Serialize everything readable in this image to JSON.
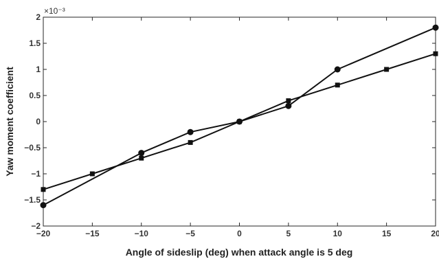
{
  "chart_data": {
    "type": "line",
    "title": "",
    "xlabel": "Angle of sideslip (deg) when attack angle is 5 deg",
    "ylabel": "Yaw moment coefficient",
    "y_scale_label": "×10⁻³",
    "xlim": [
      -20,
      20
    ],
    "ylim": [
      -2,
      2
    ],
    "x_ticks": [
      -20,
      -15,
      -10,
      -5,
      0,
      5,
      10,
      15,
      20
    ],
    "x_tick_labels": [
      "−20",
      "−15",
      "−10",
      "−5",
      "0",
      "5",
      "10",
      "15",
      "20"
    ],
    "y_ticks": [
      -2,
      -1.5,
      -1,
      -0.5,
      0,
      0.5,
      1,
      1.5,
      2
    ],
    "y_tick_labels": [
      "−2",
      "−1.5",
      "−1",
      "−0.5",
      "0",
      "0.5",
      "1",
      "1.5",
      "2"
    ],
    "grid": false,
    "series": [
      {
        "marker": "circle",
        "color": "#111111",
        "x": [
          -20,
          -10,
          -5,
          0,
          5,
          10,
          20
        ],
        "y": [
          -1.6,
          -0.6,
          -0.2,
          0,
          0.3,
          1.0,
          1.8
        ]
      },
      {
        "marker": "square",
        "color": "#111111",
        "x": [
          -20,
          -15,
          -10,
          -5,
          0,
          5,
          10,
          15,
          20
        ],
        "y": [
          -1.3,
          -1.0,
          -0.7,
          -0.4,
          0,
          0.4,
          0.7,
          1.0,
          1.3
        ]
      }
    ]
  }
}
